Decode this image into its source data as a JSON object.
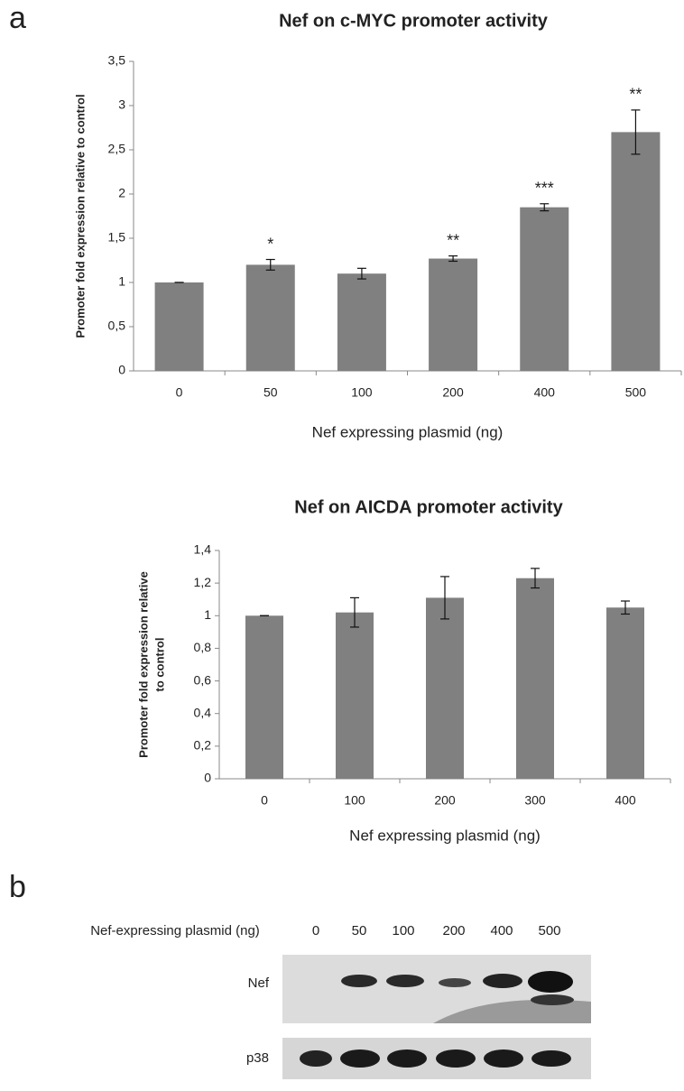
{
  "panel_labels": [
    "a",
    "b"
  ],
  "chart_data": [
    {
      "type": "bar",
      "title": "Nef on c-MYC promoter activity",
      "xlabel": "Nef expressing plasmid (ng)",
      "ylabel": [
        "Promoter fold expression relative to control"
      ],
      "categories": [
        "0",
        "50",
        "100",
        "200",
        "400",
        "500"
      ],
      "values": [
        1,
        1.2,
        1.1,
        1.27,
        1.85,
        2.7
      ],
      "errors": [
        0,
        0.06,
        0.06,
        0.03,
        0.04,
        0.25
      ],
      "annotations": [
        null,
        "*",
        null,
        "**",
        "***",
        "**"
      ],
      "color": "#808080",
      "ylim": [
        0,
        3.5
      ],
      "yticks": [
        0,
        {
          "value": 0.5,
          "label": "0,5"
        },
        1,
        {
          "value": 1.5,
          "label": "1,5"
        },
        2,
        {
          "value": 2.5,
          "label": "2,5"
        },
        3,
        {
          "value": 3.5,
          "label": "3,5"
        }
      ]
    },
    {
      "type": "bar",
      "title": "Nef on AICDA promoter activity",
      "xlabel": "Nef expressing plasmid (ng)",
      "ylabel": [
        "Promoter fold expression relative",
        "to control"
      ],
      "categories": [
        "0",
        "100",
        "200",
        "300",
        "400"
      ],
      "values": [
        1,
        1.02,
        1.11,
        1.23,
        1.05
      ],
      "errors": [
        0,
        0.09,
        0.13,
        0.06,
        0.04
      ],
      "color": "#808080",
      "ylim": [
        0,
        1.4
      ],
      "yticks": [
        0,
        {
          "value": 0.2,
          "label": "0,2"
        },
        {
          "value": 0.4,
          "label": "0,4"
        },
        {
          "value": 0.6,
          "label": "0,6"
        },
        {
          "value": 0.8,
          "label": "0,8"
        },
        1,
        {
          "value": 1.2,
          "label": "1,2"
        },
        {
          "value": 1.4,
          "label": "1,4"
        }
      ]
    }
  ],
  "blot": {
    "xlabel": "Nef-expressing plasmid (ng)",
    "lanes": [
      "0",
      "50",
      "100",
      "200",
      "400",
      "500"
    ],
    "rows": [
      "Nef",
      "p38"
    ]
  }
}
